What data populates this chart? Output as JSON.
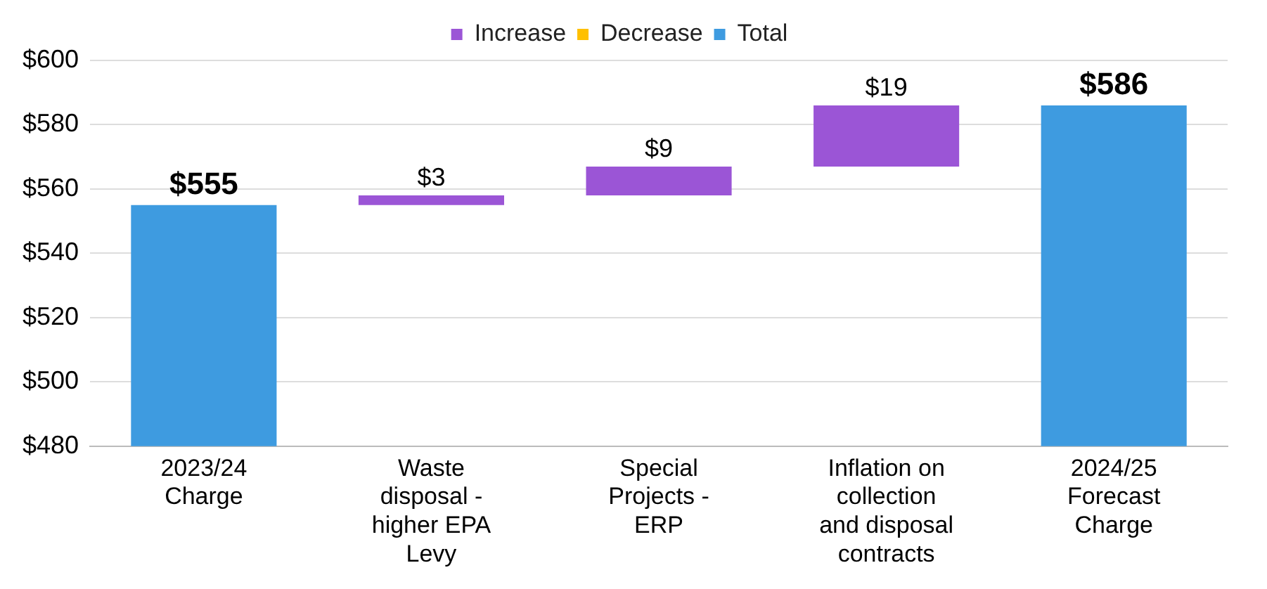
{
  "chart_data": {
    "type": "bar",
    "categories": [
      "2023/24 Charge",
      "Waste disposal - higher EPA Levy",
      "Special Projects - ERP",
      "Inflation on collection and disposal contracts",
      "2024/25 Forecast Charge"
    ],
    "series": [
      {
        "name": "Increase",
        "color": "#9b55d6",
        "values": [
          null,
          3,
          9,
          19,
          null
        ],
        "base": [
          null,
          555,
          558,
          567,
          null
        ],
        "value_labels": [
          null,
          "$3",
          "$9",
          "$19",
          null
        ]
      },
      {
        "name": "Decrease",
        "color": "#ffc000",
        "values": [
          null,
          null,
          null,
          null,
          null
        ]
      },
      {
        "name": "Total",
        "color": "#3e9be0",
        "values": [
          555,
          null,
          null,
          null,
          586
        ],
        "value_labels": [
          "$555",
          null,
          null,
          null,
          "$586"
        ]
      }
    ],
    "ylim": [
      480,
      600
    ],
    "yticks": [
      {
        "value": 480,
        "label": "$480"
      },
      {
        "value": 500,
        "label": "$500"
      },
      {
        "value": 520,
        "label": "$520"
      },
      {
        "value": 540,
        "label": "$540"
      },
      {
        "value": 560,
        "label": "$560"
      },
      {
        "value": 580,
        "label": "$580"
      },
      {
        "value": 600,
        "label": "$600"
      }
    ],
    "grid": "y",
    "legend": "top"
  }
}
